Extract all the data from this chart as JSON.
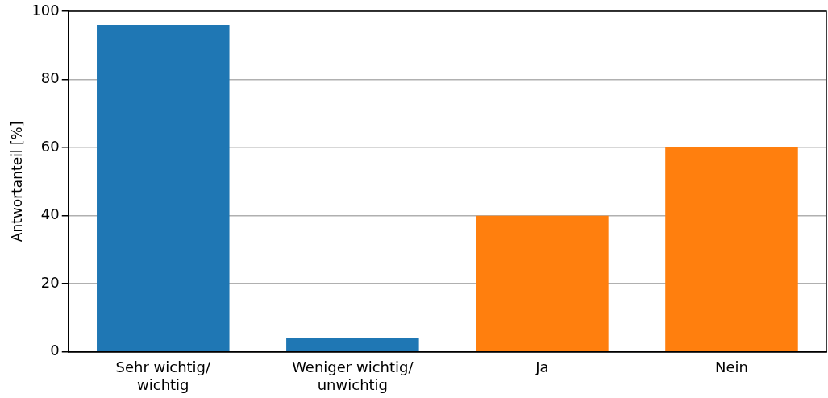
{
  "chart_data": {
    "type": "bar",
    "ylabel": "Antwortanteil [%]",
    "categories": [
      "Sehr wichtig/ wichtig",
      "Weniger wichtig/ unwichtig",
      "Ja",
      "Nein"
    ],
    "values": [
      96,
      4,
      40,
      60
    ],
    "colors": [
      "#1f77b4",
      "#1f77b4",
      "#ff7f0e",
      "#ff7f0e"
    ],
    "ylim": [
      0,
      100
    ],
    "yticks": [
      0,
      20,
      40,
      60,
      80,
      100
    ],
    "grid": "y",
    "legend": false
  }
}
